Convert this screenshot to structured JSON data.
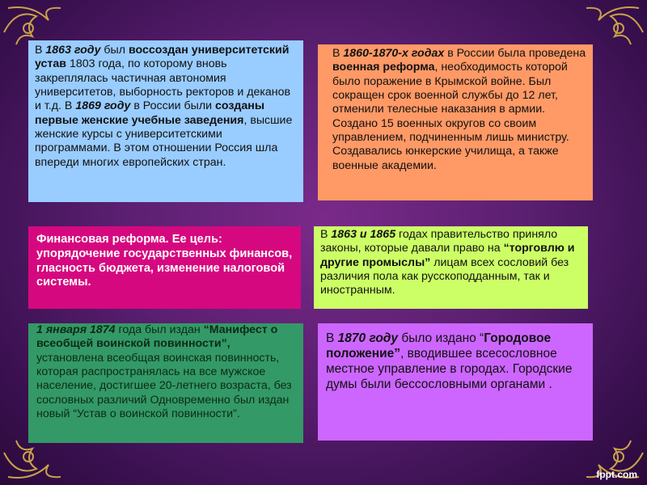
{
  "colors": {
    "background": "#5a1f70",
    "box_blue": "#99ccff",
    "box_orange": "#ff9966",
    "box_magenta": "#d6087f",
    "box_lime": "#ccff66",
    "box_green": "#339966",
    "box_violet": "#cc66ff",
    "ornament": "#c8a24a"
  },
  "boxes": [
    {
      "id": "b1",
      "name": "university-charter-box",
      "segments": [
        {
          "t": " В ",
          "s": ""
        },
        {
          "t": "1863 году",
          "s": "bi"
        },
        {
          "t": " был ",
          "s": ""
        },
        {
          "t": "воссоздан университетский устав",
          "s": "b"
        },
        {
          "t": " 1803 года, по которому вновь закреплялась частичная автономия университетов, выборность ректоров и деканов и т.д. В ",
          "s": ""
        },
        {
          "t": "1869 году",
          "s": "bi"
        },
        {
          "t": " в России были ",
          "s": ""
        },
        {
          "t": "созданы первые женские учебные заведения",
          "s": "b"
        },
        {
          "t": ", высшие женские курсы с университетскими программами. В этом отношении Россия шла впереди многих европейских стран.",
          "s": ""
        }
      ]
    },
    {
      "id": "b2",
      "name": "military-reform-box",
      "segments": [
        {
          "t": "В ",
          "s": ""
        },
        {
          "t": "1860-1870-х годах",
          "s": "bi"
        },
        {
          "t": " в России была проведена ",
          "s": ""
        },
        {
          "t": "военная реформа",
          "s": "b"
        },
        {
          "t": ", необходимость которой было поражение в Крымской войне. Был сокращен срок военной службы до 12 лет, отменили телесные наказания в армии. Создано 15 военных округов со своим управлением, подчиненным лишь министру. Создавались юнкерские училища, а также военные академии.",
          "s": ""
        }
      ]
    },
    {
      "id": "b3",
      "name": "financial-reform-box",
      "segments": [
        {
          "t": "Финансовая реформа. Ее  цель: упорядочение государственных финансов, гласность бюджета, изменение налоговой системы.",
          "s": ""
        }
      ]
    },
    {
      "id": "b4",
      "name": "trade-laws-box",
      "segments": [
        {
          "t": "В ",
          "s": ""
        },
        {
          "t": "1863 и 1865",
          "s": "bi"
        },
        {
          "t": " годах правительство приняло законы, которые давали право на ",
          "s": ""
        },
        {
          "t": "“торговлю и другие промыслы”",
          "s": "b"
        },
        {
          "t": " лицам всех сословий без различия пола как русскоподданным, так и иностранным.",
          "s": ""
        }
      ]
    },
    {
      "id": "b5",
      "name": "conscription-box",
      "segments": [
        {
          "t": "1 января 1874",
          "s": "bi"
        },
        {
          "t": " года был издан ",
          "s": ""
        },
        {
          "t": "“Манифест о всеобщей воинской повинности”,",
          "s": "b"
        },
        {
          "t": " установлена всеобщая воинская повинность, которая распространялась на все мужское население, достигшее 20-летнего возраста, без сословных различий Одновременно был издан новый “Устав о воинской повинности”.",
          "s": ""
        }
      ]
    },
    {
      "id": "b6",
      "name": "city-statute-box",
      "segments": [
        {
          "t": " В ",
          "s": ""
        },
        {
          "t": "1870 году",
          "s": "bi"
        },
        {
          "t": " было издано “",
          "s": ""
        },
        {
          "t": "Городовое положение”",
          "s": "b"
        },
        {
          "t": ", вводившее всесословное местное управление в городах. Городские думы были бессословными органами .",
          "s": ""
        }
      ]
    }
  ],
  "watermark": "fppt.com"
}
